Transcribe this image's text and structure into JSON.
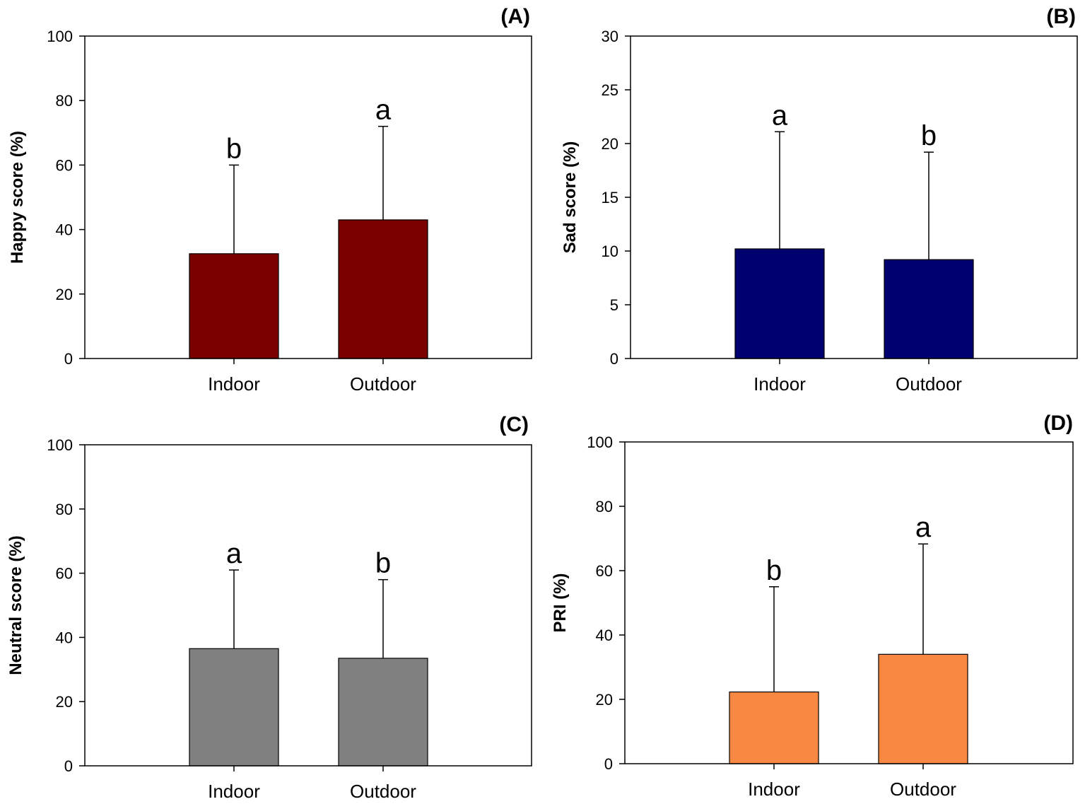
{
  "figure": {
    "panel_count": 4
  },
  "chart_data": [
    {
      "type": "bar",
      "panel_label": "(A)",
      "categories": [
        "Indoor",
        "Outdoor"
      ],
      "values": [
        32.5,
        43
      ],
      "error_upper": [
        60,
        72
      ],
      "significance": [
        "b",
        "a"
      ],
      "ylabel": "Happy score (%)",
      "xlabel": "",
      "ylim": [
        0,
        100
      ],
      "yticks": [
        0,
        20,
        40,
        60,
        80,
        100
      ],
      "bar_color": "#7a0000"
    },
    {
      "type": "bar",
      "panel_label": "(B)",
      "categories": [
        "Indoor",
        "Outdoor"
      ],
      "values": [
        10.2,
        9.2
      ],
      "error_upper": [
        21.1,
        19.2
      ],
      "significance": [
        "a",
        "b"
      ],
      "ylabel": "Sad score (%)",
      "xlabel": "",
      "ylim": [
        0,
        30
      ],
      "yticks": [
        0,
        5,
        10,
        15,
        20,
        25,
        30
      ],
      "bar_color": "#00006e"
    },
    {
      "type": "bar",
      "panel_label": "(C)",
      "categories": [
        "Indoor",
        "Outdoor"
      ],
      "values": [
        36.5,
        33.5
      ],
      "error_upper": [
        61,
        58
      ],
      "significance": [
        "a",
        "b"
      ],
      "ylabel": "Neutral score (%)",
      "xlabel": "",
      "ylim": [
        0,
        100
      ],
      "yticks": [
        0,
        20,
        40,
        60,
        80,
        100
      ],
      "bar_color": "#808080"
    },
    {
      "type": "bar",
      "panel_label": "(D)",
      "categories": [
        "Indoor",
        "Outdoor"
      ],
      "values": [
        22.3,
        34
      ],
      "error_upper": [
        55,
        68.3
      ],
      "significance": [
        "b",
        "a"
      ],
      "ylabel": "PRI (%)",
      "xlabel": "",
      "ylim": [
        0,
        100
      ],
      "yticks": [
        0,
        20,
        40,
        60,
        80,
        100
      ],
      "bar_color": "#f98842"
    }
  ]
}
